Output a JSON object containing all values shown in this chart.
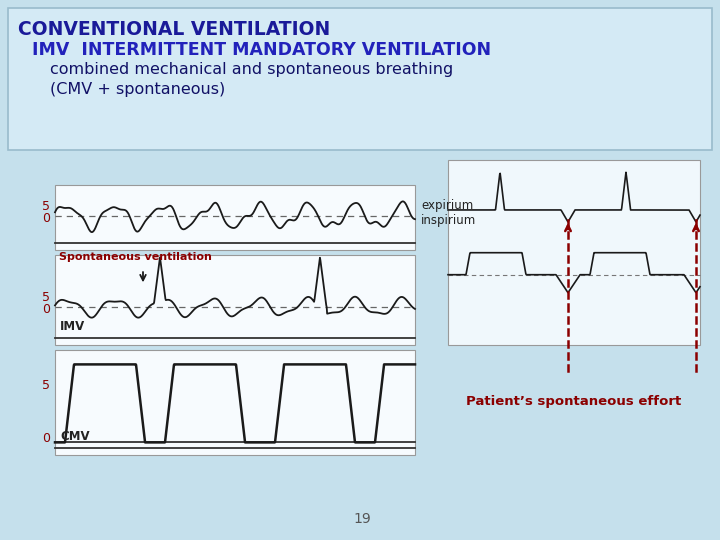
{
  "bg_color": "#c5e0ec",
  "title_bg": "#d4eaf5",
  "title1": "CONVENTIONAL VENTILATION",
  "title2": "IMV  INTERMITTENT MANDATORY VENTILATION",
  "title3": "combined mechanical and spontaneous breathing",
  "title4": "(CMV + spontaneous)",
  "title1_color": "#1a1a99",
  "title2_color": "#2222bb",
  "title34_color": "#111166",
  "label_imv": "IMV",
  "label_cmv": "CMV",
  "label_spont": "Spontaneous ventilation",
  "label_expirium": "expirium",
  "label_inspirium": "inspirium",
  "label_patient": "Patient’s spontaneous effort",
  "line_color": "#1a1a1a",
  "dark_red": "#8b0000",
  "panel_bg": "#ffffff",
  "panel_edge": "#999999"
}
